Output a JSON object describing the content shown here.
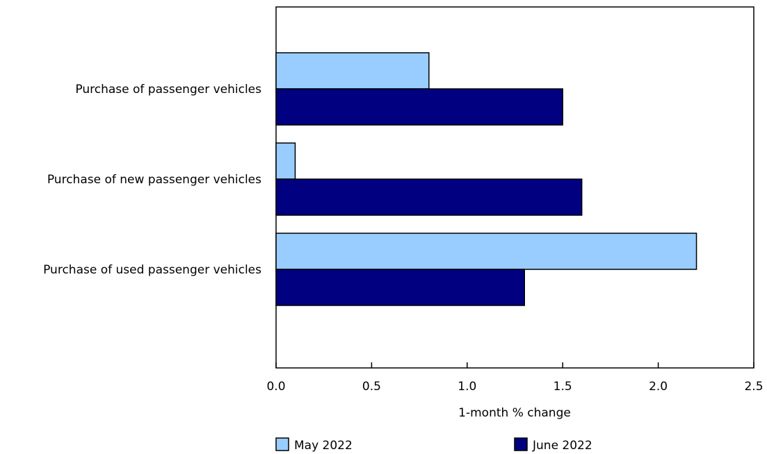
{
  "chart_data": {
    "type": "bar",
    "orientation": "horizontal",
    "categories": [
      "Purchase of passenger vehicles",
      "Purchase of new passenger vehicles",
      "Purchase of used passenger vehicles"
    ],
    "series": [
      {
        "name": "May 2022",
        "color": "#99ccff",
        "values": [
          0.8,
          0.1,
          2.2
        ]
      },
      {
        "name": "June 2022",
        "color": "#000080",
        "values": [
          1.5,
          1.6,
          1.3
        ]
      }
    ],
    "xlabel": "1-month % change",
    "xlim": [
      0,
      2.5
    ],
    "xticks": [
      "0.0",
      "0.5",
      "1.0",
      "1.5",
      "2.0",
      "2.5"
    ],
    "grid": false,
    "legend_position": "bottom"
  }
}
